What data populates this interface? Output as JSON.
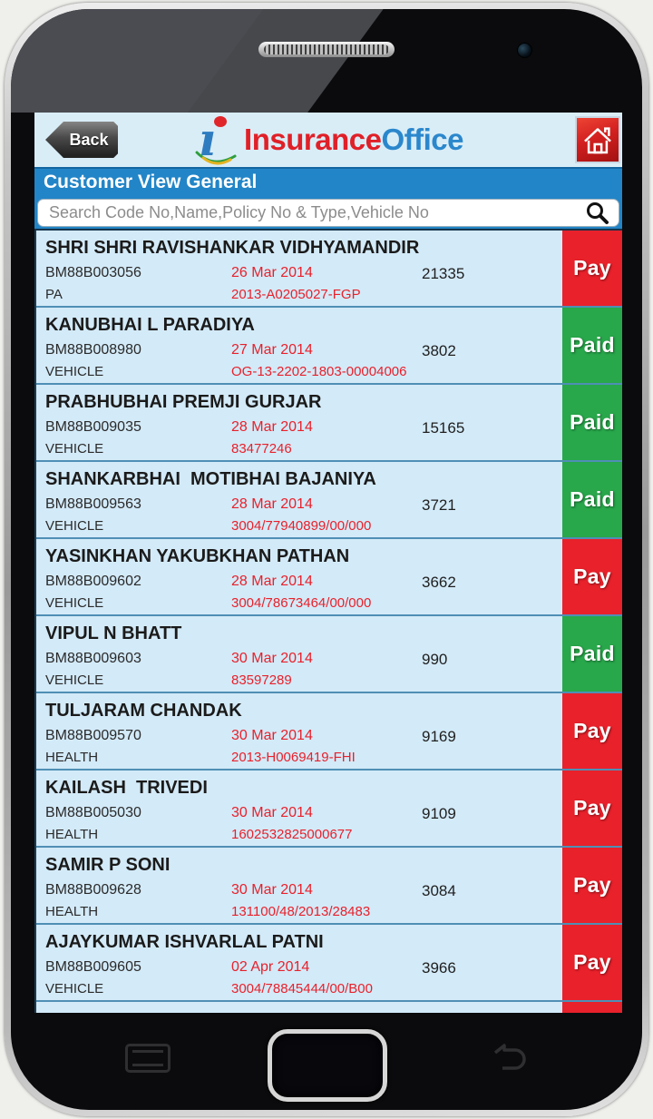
{
  "header": {
    "back_label": "Back",
    "brand_word1": "Insurance",
    "brand_word2": "Office"
  },
  "titlebar": {
    "title": "Customer View General"
  },
  "search": {
    "placeholder": "Search Code No,Name,Policy No & Type,Vehicle No"
  },
  "customers": [
    {
      "name": "SHRI SHRI RAVISHANKAR VIDHYAMANDIR",
      "code": "BM88B003056",
      "date": "26 Mar 2014",
      "amount": "21335",
      "type": "PA",
      "policy": "2013-A0205027-FGP",
      "status": "Pay"
    },
    {
      "name": "KANUBHAI L PARADIYA",
      "code": "BM88B008980",
      "date": "27 Mar 2014",
      "amount": "3802",
      "type": "VEHICLE",
      "policy": "OG-13-2202-1803-00004006",
      "status": "Paid"
    },
    {
      "name": "PRABHUBHAI PREMJI GURJAR",
      "code": "BM88B009035",
      "date": "28 Mar 2014",
      "amount": "15165",
      "type": "VEHICLE",
      "policy": "83477246",
      "status": "Paid"
    },
    {
      "name": "SHANKARBHAI  MOTIBHAI BAJANIYA",
      "code": "BM88B009563",
      "date": "28 Mar 2014",
      "amount": "3721",
      "type": "VEHICLE",
      "policy": "3004/77940899/00/000",
      "status": "Paid"
    },
    {
      "name": "YASINKHAN YAKUBKHAN PATHAN",
      "code": "BM88B009602",
      "date": "28 Mar 2014",
      "amount": "3662",
      "type": "VEHICLE",
      "policy": "3004/78673464/00/000",
      "status": "Pay"
    },
    {
      "name": "VIPUL N BHATT",
      "code": "BM88B009603",
      "date": "30 Mar 2014",
      "amount": "990",
      "type": "VEHICLE",
      "policy": "83597289",
      "status": "Paid"
    },
    {
      "name": "TULJARAM CHANDAK",
      "code": "BM88B009570",
      "date": "30 Mar 2014",
      "amount": "9169",
      "type": "HEALTH",
      "policy": "2013-H0069419-FHI",
      "status": "Pay"
    },
    {
      "name": "KAILASH  TRIVEDI",
      "code": "BM88B005030",
      "date": "30 Mar 2014",
      "amount": "9109",
      "type": "HEALTH",
      "policy": "1602532825000677",
      "status": "Pay"
    },
    {
      "name": "SAMIR P SONI",
      "code": "BM88B009628",
      "date": "30 Mar 2014",
      "amount": "3084",
      "type": "HEALTH",
      "policy": "131100/48/2013/28483",
      "status": "Pay"
    },
    {
      "name": "AJAYKUMAR ISHVARLAL PATNI",
      "code": "BM88B009605",
      "date": "02 Apr 2014",
      "amount": "3966",
      "type": "VEHICLE",
      "policy": "3004/78845444/00/B00",
      "status": "Pay"
    }
  ],
  "colors": {
    "pay_red": "#e8212b",
    "paid_green": "#28a74b",
    "accent_blue": "#2285c7",
    "row_bg": "#d3eaf8",
    "date_red": "#e8212b",
    "brand_red": "#e02028",
    "brand_blue": "#2b87cc"
  }
}
